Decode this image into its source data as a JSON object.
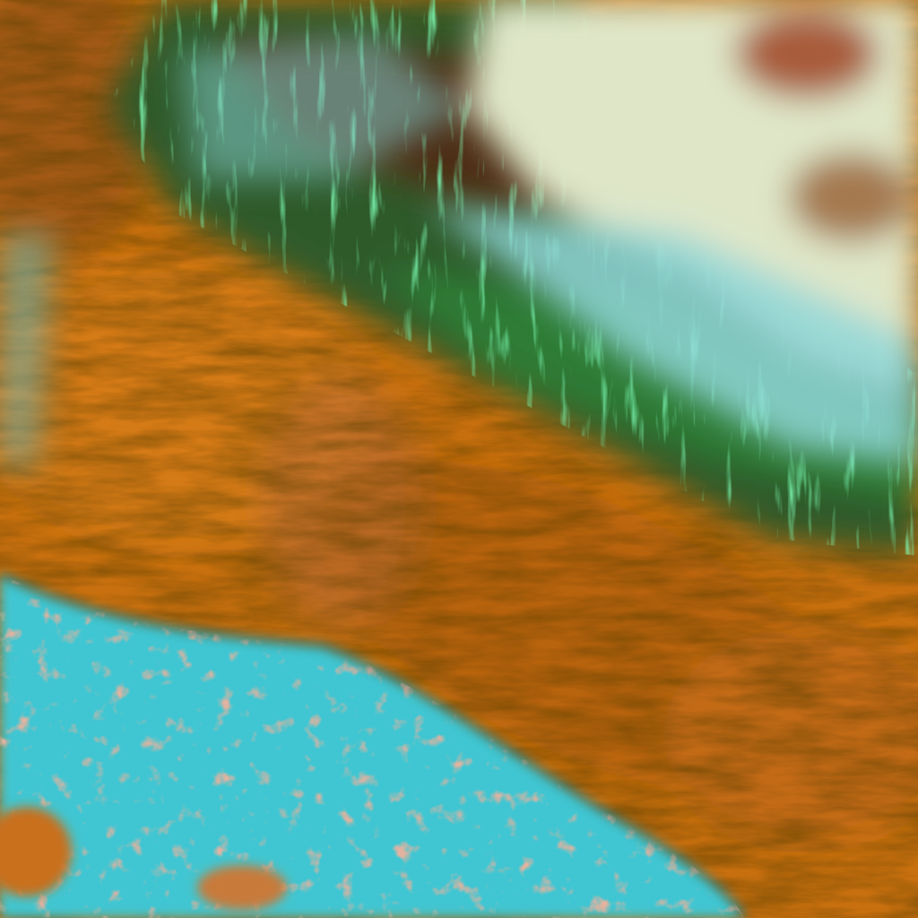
{
  "image": {
    "kind": "false-color satellite imagery",
    "colors": {
      "land_orange": "#c8700f",
      "land_dark_orange": "#9a5410",
      "water_cyan": "#3fc6d2",
      "cloud_pale": "#dfe6c8",
      "cloud_cyan": "#8fd6d8",
      "vegetation_green": "#2e8a3a",
      "bright_green": "#3cf07a",
      "dark_red_brown": "#5a1a10"
    }
  }
}
